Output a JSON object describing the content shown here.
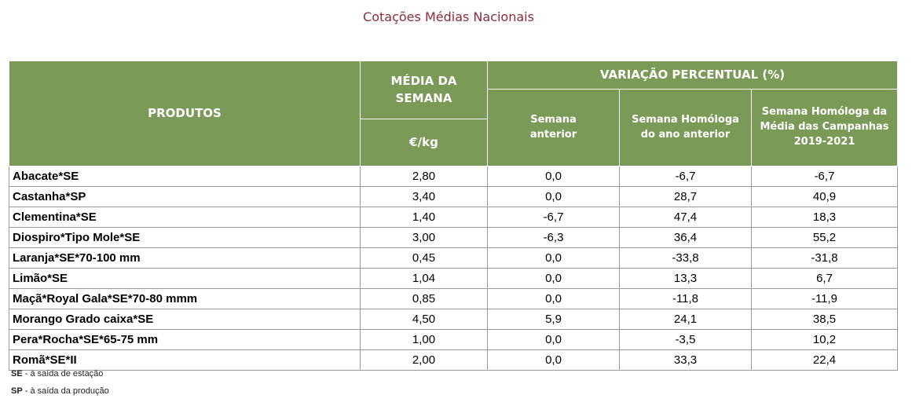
{
  "title": "Cotações Médias Nacionais",
  "headers": {
    "produtos": "PRODUTOS",
    "media": "MÉDIA DA SEMANA",
    "unit": "€/kg",
    "variacao": "VARIAÇÃO PERCENTUAL (%)",
    "semana_anterior": "Semana anterior",
    "homologa_ano": "Semana Homóloga do ano anterior",
    "homologa_campanhas": "Semana Homóloga da Média das Campanhas 2019-2021"
  },
  "rows": [
    {
      "produto": "Abacate*SE",
      "media": "2,80",
      "anterior": "0,0",
      "ano": "-6,7",
      "campanhas": "-6,7"
    },
    {
      "produto": "Castanha*SP",
      "media": "3,40",
      "anterior": "0,0",
      "ano": "28,7",
      "campanhas": "40,9"
    },
    {
      "produto": "Clementina*SE",
      "media": "1,40",
      "anterior": "-6,7",
      "ano": "47,4",
      "campanhas": "18,3"
    },
    {
      "produto": "Diospiro*Tipo Mole*SE",
      "media": "3,00",
      "anterior": "-6,3",
      "ano": "36,4",
      "campanhas": "55,2"
    },
    {
      "produto": "Laranja*SE*70-100 mm",
      "media": "0,45",
      "anterior": "0,0",
      "ano": "-33,8",
      "campanhas": "-31,8"
    },
    {
      "produto": "Limão*SE",
      "media": "1,04",
      "anterior": "0,0",
      "ano": "13,3",
      "campanhas": "6,7"
    },
    {
      "produto": "Maçã*Royal Gala*SE*70-80 mmm",
      "media": "0,85",
      "anterior": "0,0",
      "ano": "-11,8",
      "campanhas": "-11,9"
    },
    {
      "produto": "Morango Grado caixa*SE",
      "media": "4,50",
      "anterior": "5,9",
      "ano": "24,1",
      "campanhas": "38,5"
    },
    {
      "produto": "Pera*Rocha*SE*65-75 mm",
      "media": "1,00",
      "anterior": "0,0",
      "ano": "-3,5",
      "campanhas": "10,2"
    },
    {
      "produto": "Romã*SE*II",
      "media": "2,00",
      "anterior": "0,0",
      "ano": "33,3",
      "campanhas": "22,4"
    }
  ],
  "footnotes": [
    {
      "abbr": "SE",
      "text": " - à saída de estação"
    },
    {
      "abbr": "SP",
      "text": " - à saída da produção"
    }
  ]
}
